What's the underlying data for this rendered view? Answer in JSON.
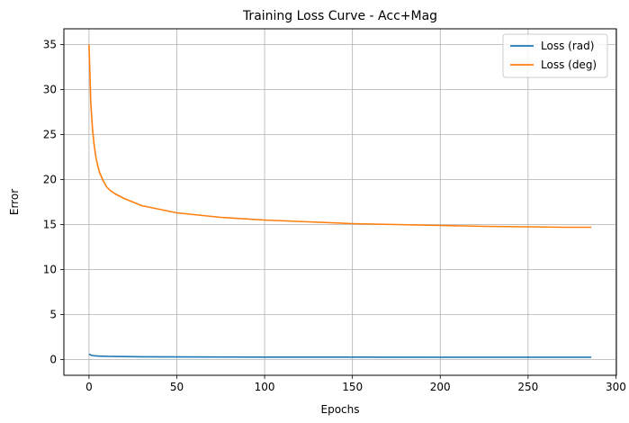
{
  "chart_data": {
    "type": "line",
    "title": "Training Loss Curve - Acc+Mag",
    "xlabel": "Epochs",
    "ylabel": "Error",
    "xlim": [
      -14.3,
      300.3
    ],
    "ylim": [
      -1.75,
      36.75
    ],
    "xticks": [
      0,
      50,
      100,
      150,
      200,
      250,
      300
    ],
    "yticks": [
      0,
      5,
      10,
      15,
      20,
      25,
      30,
      35
    ],
    "grid": true,
    "legend_position": "top-right",
    "series": [
      {
        "name": "Loss (rad)",
        "color": "#1f77b4",
        "x": [
          0,
          1,
          2,
          3,
          5,
          8,
          12,
          20,
          30,
          50,
          75,
          100,
          150,
          200,
          250,
          286
        ],
        "y": [
          0.61,
          0.5,
          0.45,
          0.42,
          0.39,
          0.37,
          0.35,
          0.33,
          0.31,
          0.29,
          0.28,
          0.27,
          0.27,
          0.26,
          0.26,
          0.26
        ]
      },
      {
        "name": "Loss (deg)",
        "color": "#ff7f0e",
        "x": [
          0,
          1,
          2,
          3,
          4,
          5,
          6,
          8,
          10,
          12,
          15,
          20,
          25,
          30,
          40,
          50,
          60,
          75,
          100,
          125,
          150,
          175,
          200,
          225,
          250,
          270,
          286
        ],
        "y": [
          35.0,
          28.5,
          25.6,
          23.7,
          22.4,
          21.5,
          20.8,
          19.9,
          19.2,
          18.8,
          18.4,
          17.9,
          17.5,
          17.1,
          16.7,
          16.3,
          16.1,
          15.8,
          15.5,
          15.3,
          15.1,
          15.0,
          14.9,
          14.8,
          14.75,
          14.7,
          14.7
        ]
      }
    ]
  }
}
